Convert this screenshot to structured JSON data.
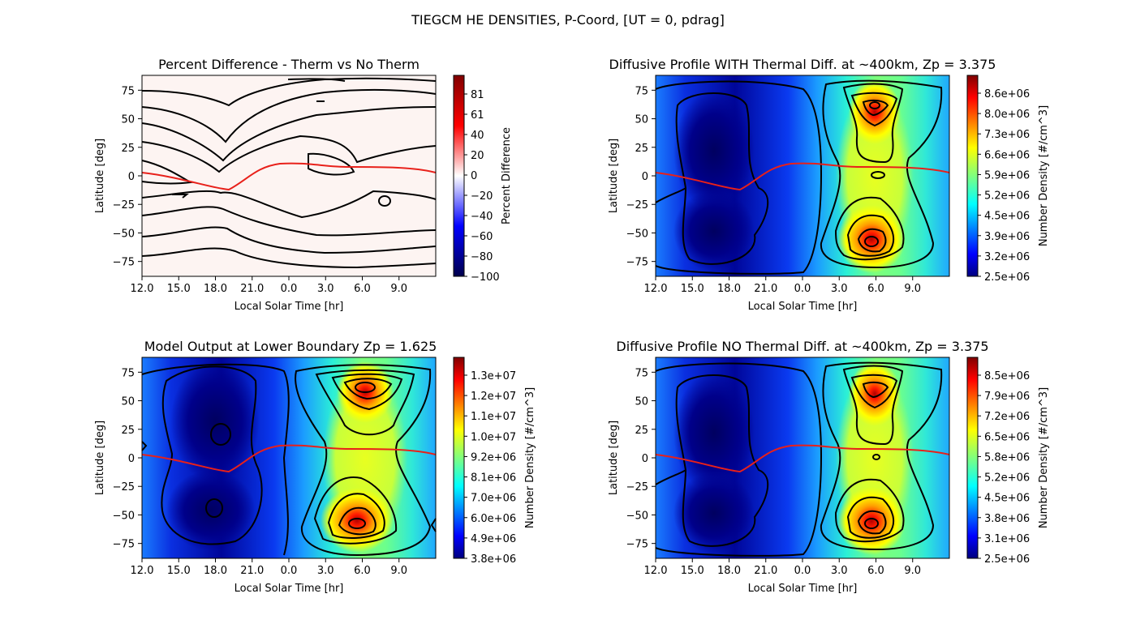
{
  "figure": {
    "suptitle": "TIEGCM HE DENSITIES, P-Coord, [UT = 0, pdrag]"
  },
  "chart_data": [
    {
      "type": "heatmap",
      "title": "Percent Difference - Therm vs No Therm",
      "xlabel": "Local Solar Time [hr]",
      "ylabel": "Latitude [deg]",
      "xticks": [
        "12.0",
        "15.0",
        "18.0",
        "21.0",
        "0.0",
        "3.0",
        "6.0",
        "9.0"
      ],
      "yticks": [
        "75",
        "50",
        "25",
        "0",
        "−25",
        "−50",
        "−75"
      ],
      "ylim": [
        -88,
        88
      ],
      "colormap": "seismic",
      "colorbar": {
        "label": "Percent Difference",
        "ticks": [
          "81",
          "61",
          "40",
          "20",
          "0",
          "−20",
          "−40",
          "−60",
          "−80",
          "−100"
        ]
      },
      "colors": {
        "background": "#fdf4f2",
        "contour": "#000000",
        "terminator": "#e8201a"
      }
    },
    {
      "type": "heatmap",
      "title": "Diffusive Profile WITH Thermal Diff. at ~400km, Zp = 3.375",
      "xlabel": "Local Solar Time [hr]",
      "ylabel": "Latitude [deg]",
      "xticks": [
        "12.0",
        "15.0",
        "18.0",
        "21.0",
        "0.0",
        "3.0",
        "6.0",
        "9.0"
      ],
      "yticks": [
        "75",
        "50",
        "25",
        "0",
        "−25",
        "−50",
        "−75"
      ],
      "ylim": [
        -88,
        88
      ],
      "colormap": "jet",
      "colorbar": {
        "label": "Number Density [#/cm^3]",
        "ticks": [
          "8.6e+06",
          "8.0e+06",
          "7.3e+06",
          "6.6e+06",
          "5.9e+06",
          "5.2e+06",
          "4.5e+06",
          "3.9e+06",
          "3.2e+06",
          "2.5e+06"
        ]
      },
      "colors": {
        "contour": "#000000",
        "terminator": "#e8201a"
      }
    },
    {
      "type": "heatmap",
      "title": "Model Output at Lower Boundary Zp = 1.625",
      "xlabel": "Local Solar Time [hr]",
      "ylabel": "Latitude [deg]",
      "xticks": [
        "12.0",
        "15.0",
        "18.0",
        "21.0",
        "0.0",
        "3.0",
        "6.0",
        "9.0"
      ],
      "yticks": [
        "75",
        "50",
        "25",
        "0",
        "−25",
        "−50",
        "−75"
      ],
      "ylim": [
        -88,
        88
      ],
      "colormap": "jet",
      "colorbar": {
        "label": "Number Density [#/cm^3]",
        "ticks": [
          "1.3e+07",
          "1.2e+07",
          "1.1e+07",
          "1.0e+07",
          "9.2e+06",
          "8.1e+06",
          "7.0e+06",
          "6.0e+06",
          "4.9e+06",
          "3.8e+06"
        ]
      },
      "colors": {
        "contour": "#000000",
        "terminator": "#e8201a"
      }
    },
    {
      "type": "heatmap",
      "title": "Diffusive Profile NO Thermal Diff. at ~400km, Zp = 3.375",
      "xlabel": "Local Solar Time [hr]",
      "ylabel": "Latitude [deg]",
      "xticks": [
        "12.0",
        "15.0",
        "18.0",
        "21.0",
        "0.0",
        "3.0",
        "6.0",
        "9.0"
      ],
      "yticks": [
        "75",
        "50",
        "25",
        "0",
        "−25",
        "−50",
        "−75"
      ],
      "ylim": [
        -88,
        88
      ],
      "colormap": "jet",
      "colorbar": {
        "label": "Number Density [#/cm^3]",
        "ticks": [
          "8.5e+06",
          "7.9e+06",
          "7.2e+06",
          "6.5e+06",
          "5.8e+06",
          "5.2e+06",
          "4.5e+06",
          "3.8e+06",
          "3.1e+06",
          "2.5e+06"
        ]
      },
      "colors": {
        "contour": "#000000",
        "terminator": "#e8201a"
      }
    }
  ]
}
